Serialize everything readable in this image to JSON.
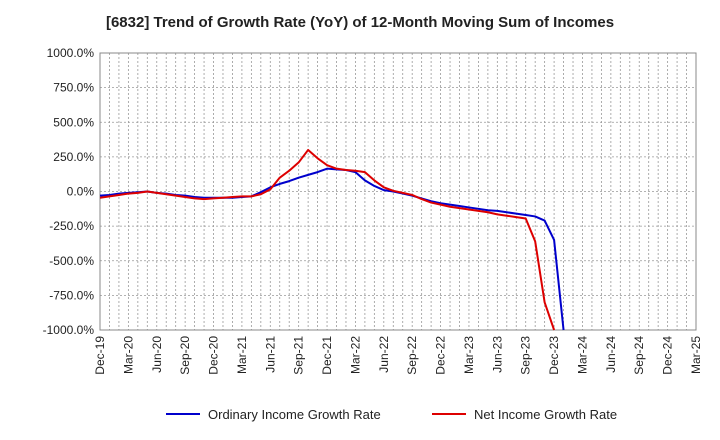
{
  "chart_data": {
    "type": "line",
    "title": "[6832]  Trend of Growth Rate (YoY) of 12-Month Moving Sum of Incomes",
    "xlabel": "",
    "ylabel": "",
    "ylim": [
      -1000,
      1000
    ],
    "grid": true,
    "legend_position": "bottom",
    "y_ticks": [
      "1000.0%",
      "750.0%",
      "500.0%",
      "250.0%",
      "0.0%",
      "-250.0%",
      "-500.0%",
      "-750.0%",
      "-1000.0%"
    ],
    "x_ticks": [
      "Dec-19",
      "Mar-20",
      "Jun-20",
      "Sep-20",
      "Dec-20",
      "Mar-21",
      "Jun-21",
      "Sep-21",
      "Dec-21",
      "Mar-22",
      "Jun-22",
      "Sep-22",
      "Dec-22",
      "Mar-23",
      "Jun-23",
      "Sep-23",
      "Dec-23",
      "Mar-24",
      "Jun-24",
      "Sep-24",
      "Dec-24",
      "Mar-25"
    ],
    "x_start": "2019-12",
    "series": [
      {
        "name": "Ordinary Income Growth Rate",
        "color": "#0000cc",
        "values": [
          -30,
          -25,
          -15,
          -10,
          -5,
          0,
          -10,
          -15,
          -25,
          -30,
          -40,
          -45,
          -45,
          -45,
          -45,
          -40,
          -35,
          -5,
          30,
          55,
          75,
          100,
          120,
          140,
          165,
          160,
          155,
          140,
          80,
          40,
          10,
          0,
          -15,
          -30,
          -50,
          -70,
          -85,
          -95,
          -105,
          -115,
          -125,
          -135,
          -140,
          -150,
          -160,
          -170,
          -180,
          -210,
          -350,
          -1000
        ]
      },
      {
        "name": "Net Income Growth Rate",
        "color": "#dd0000",
        "values": [
          -45,
          -35,
          -25,
          -15,
          -10,
          0,
          -10,
          -20,
          -30,
          -40,
          -50,
          -55,
          -50,
          -45,
          -40,
          -35,
          -35,
          -20,
          15,
          100,
          150,
          210,
          300,
          240,
          190,
          165,
          155,
          150,
          140,
          80,
          30,
          5,
          -10,
          -25,
          -55,
          -80,
          -95,
          -110,
          -120,
          -130,
          -140,
          -150,
          -165,
          -175,
          -185,
          -195,
          -360,
          -800,
          -1000
        ]
      }
    ]
  }
}
